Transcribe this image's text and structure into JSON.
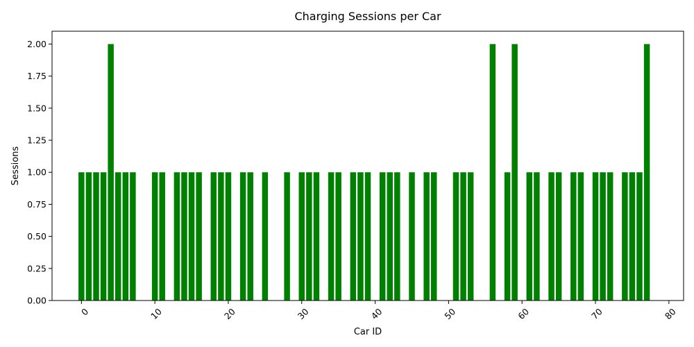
{
  "chart_data": {
    "type": "bar",
    "title": "Charging Sessions per Car",
    "xlabel": "Car ID",
    "ylabel": "Sessions",
    "bar_color": "#008000",
    "grid": false,
    "xlim": [
      -4,
      82
    ],
    "ylim": [
      0,
      2.1
    ],
    "xticks": [
      "0",
      "10",
      "20",
      "30",
      "40",
      "50",
      "60",
      "70",
      "80"
    ],
    "xtick_values": [
      0,
      10,
      20,
      30,
      40,
      50,
      60,
      70,
      80
    ],
    "yticks": [
      "0.00",
      "0.25",
      "0.50",
      "0.75",
      "1.00",
      "1.25",
      "1.50",
      "1.75",
      "2.00"
    ],
    "ytick_values": [
      0,
      0.25,
      0.5,
      0.75,
      1.0,
      1.25,
      1.5,
      1.75,
      2.0
    ],
    "x": [
      0,
      1,
      2,
      3,
      4,
      5,
      6,
      7,
      10,
      11,
      13,
      14,
      15,
      16,
      18,
      19,
      20,
      22,
      23,
      25,
      28,
      30,
      31,
      32,
      34,
      35,
      37,
      38,
      39,
      41,
      42,
      43,
      45,
      47,
      48,
      51,
      52,
      53,
      56,
      58,
      59,
      61,
      62,
      64,
      65,
      67,
      68,
      70,
      71,
      72,
      74,
      75,
      76,
      77
    ],
    "values": [
      1,
      1,
      1,
      1,
      2,
      1,
      1,
      1,
      1,
      1,
      1,
      1,
      1,
      1,
      1,
      1,
      1,
      1,
      1,
      1,
      1,
      1,
      1,
      1,
      1,
      1,
      1,
      1,
      1,
      1,
      1,
      1,
      1,
      1,
      1,
      1,
      1,
      1,
      2,
      1,
      2,
      1,
      1,
      1,
      1,
      1,
      1,
      1,
      1,
      1,
      1,
      1,
      1,
      2
    ]
  }
}
